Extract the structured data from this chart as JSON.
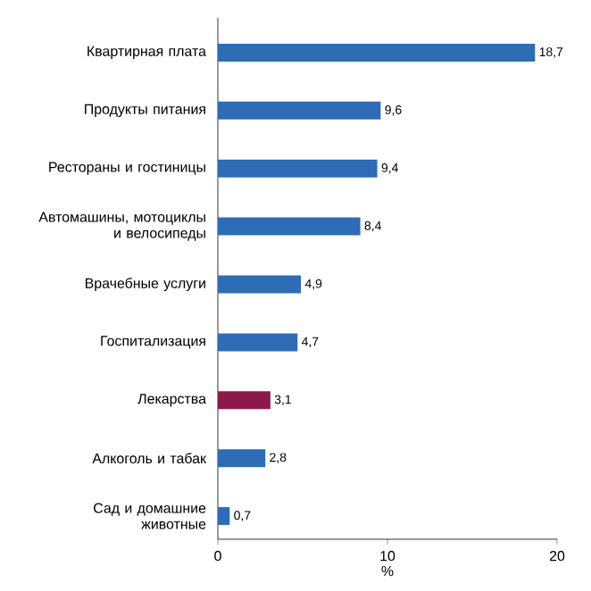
{
  "chart_data": {
    "type": "bar",
    "orientation": "horizontal",
    "categories": [
      "Квартирная плата",
      "Продукты питания",
      "Рестораны и гостиницы",
      "Автомашины, мотоциклы и велосипеды",
      "Врачебные услуги",
      "Госпитализация",
      "Лекарства",
      "Алкоголь и табак",
      "Сад и домашние животные"
    ],
    "values": [
      18.7,
      9.6,
      9.4,
      8.4,
      4.9,
      4.7,
      3.1,
      2.8,
      0.7
    ],
    "value_labels": [
      "18,7",
      "9,6",
      "9,4",
      "8,4",
      "4,9",
      "4,7",
      "3,1",
      "2,8",
      "0,7"
    ],
    "colors": [
      "#2e6cb5",
      "#2e6cb5",
      "#2e6cb5",
      "#2e6cb5",
      "#2e6cb5",
      "#2e6cb5",
      "#8b1a4b",
      "#2e6cb5",
      "#2e6cb5"
    ],
    "xlim": [
      0,
      20
    ],
    "xticks": [
      0,
      10,
      20
    ],
    "xlabel": "%"
  }
}
